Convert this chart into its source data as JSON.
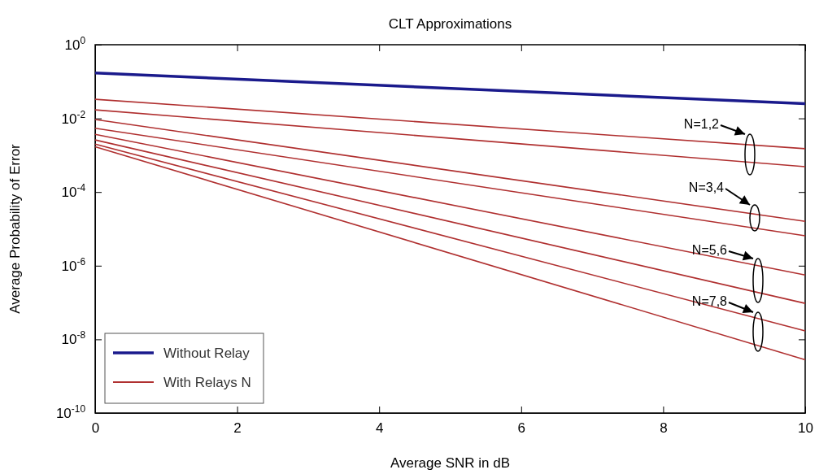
{
  "chart_data": {
    "type": "line",
    "title": "CLT Approximations",
    "xlabel": "Average SNR in dB",
    "ylabel": "Average Probability of Error",
    "log": "y",
    "xlim": [
      0,
      10
    ],
    "xticks": [
      0,
      2,
      4,
      6,
      8,
      10
    ],
    "ylim": [
      1e-10,
      1
    ],
    "yticks": [
      {
        "value": 1,
        "label": "10$^{0}$"
      },
      {
        "value": 0.01,
        "label": "10$^{-2}$"
      },
      {
        "value": 0.0001,
        "label": "10$^{-4}$"
      },
      {
        "value": 1e-06,
        "label": "10$^{-6}$"
      },
      {
        "value": 1e-08,
        "label": "10$^{-8}$"
      },
      {
        "value": 1e-10,
        "label": "10$^{-10}$"
      }
    ],
    "x": [
      0,
      10
    ],
    "legend": "bottom left",
    "marker": "none",
    "line_style": "solid",
    "series": [
      {
        "name": "Without Relay",
        "color": "#1a1a8c",
        "values": [
          0.17,
          0.025
        ]
      },
      {
        "name": "With Relays N",
        "color": "#b03030",
        "values": [
          0.033,
          0.0015
        ]
      },
      {
        "color": "#b03030",
        "values": [
          0.017,
          0.00049
        ]
      },
      {
        "color": "#b03030",
        "values": [
          0.0093,
          1.6e-05
        ]
      },
      {
        "color": "#b03030",
        "values": [
          0.0054,
          6.5e-06
        ]
      },
      {
        "color": "#b03030",
        "values": [
          0.0037,
          5.6e-07
        ]
      },
      {
        "color": "#b03030",
        "values": [
          0.0026,
          9.5e-08
        ]
      },
      {
        "color": "#b03030",
        "values": [
          0.002,
          1.7e-08
        ]
      },
      {
        "color": "#b03030",
        "values": [
          0.0017,
          2.8e-09
        ]
      }
    ],
    "annotations": [
      "N=1,2",
      "N=3,4",
      "N=5,6",
      "N=7,8"
    ]
  }
}
